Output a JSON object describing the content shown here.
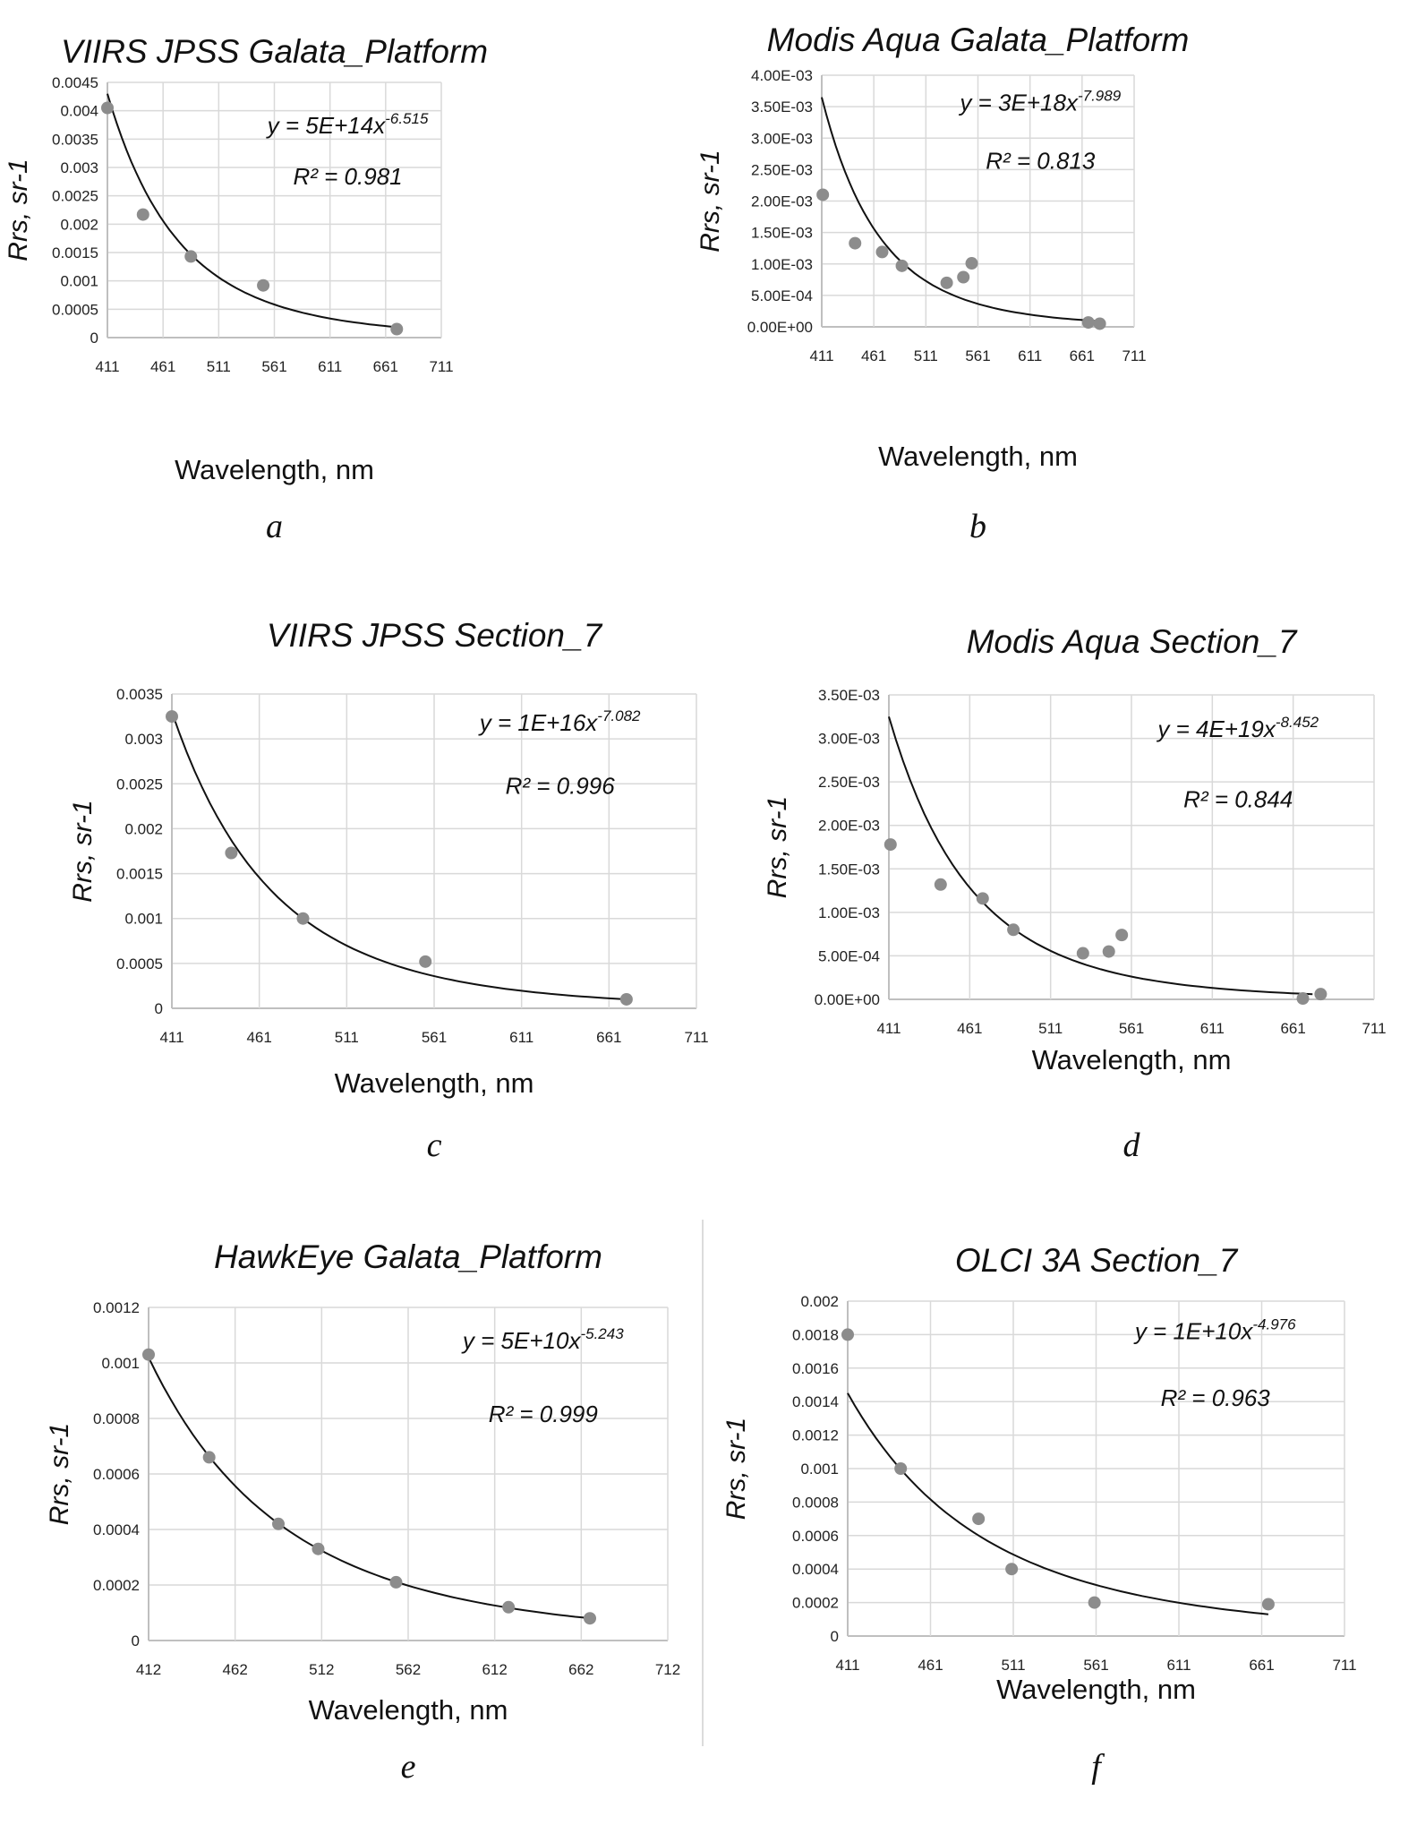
{
  "chart_data": [
    {
      "type": "scatter",
      "panel": "a",
      "title": "VIIRS JPSS Galata_Platform",
      "xlabel": "Wavelength, nm",
      "ylabel": "Rrs, sr-1",
      "xlim": [
        411,
        711
      ],
      "xticks": [
        "411",
        "461",
        "511",
        "561",
        "611",
        "661",
        "711"
      ],
      "ylim": [
        0,
        0.0045
      ],
      "yticks": [
        "0",
        "0.0005",
        "0.001",
        "0.0015",
        "0.002",
        "0.0025",
        "0.003",
        "0.0035",
        "0.004",
        "0.0045"
      ],
      "points": [
        [
          411,
          0.00405
        ],
        [
          443,
          0.00217
        ],
        [
          486,
          0.00143
        ],
        [
          551,
          0.00092
        ],
        [
          671,
          0.00015
        ]
      ],
      "trendline": {
        "type": "power",
        "from": [
          411,
          0.0043
        ],
        "to": [
          668,
          0.00019
        ],
        "equation": "y = 5E+14x",
        "exponent": "-6.515",
        "r2": "R² = 0.981"
      },
      "grid": true
    },
    {
      "type": "scatter",
      "panel": "b",
      "title": "Modis Aqua Galata_Platform",
      "xlabel": "Wavelength, nm",
      "ylabel": "Rrs, sr-1",
      "xlim": [
        411,
        711
      ],
      "xticks": [
        "411",
        "461",
        "511",
        "561",
        "611",
        "661",
        "711"
      ],
      "ylim": [
        0,
        0.004
      ],
      "yticks": [
        "0.00E+00",
        "5.00E-04",
        "1.00E-03",
        "1.50E-03",
        "2.00E-03",
        "2.50E-03",
        "3.00E-03",
        "3.50E-03",
        "4.00E-03"
      ],
      "points": [
        [
          412,
          0.0021
        ],
        [
          443,
          0.00133
        ],
        [
          469,
          0.00119
        ],
        [
          488,
          0.00097
        ],
        [
          531,
          0.0007
        ],
        [
          547,
          0.00079
        ],
        [
          555,
          0.00101
        ],
        [
          667,
          7e-05
        ],
        [
          678,
          5e-05
        ]
      ],
      "trendline": {
        "type": "power",
        "from": [
          411,
          0.00365
        ],
        "to": [
          678,
          9e-05
        ],
        "equation": "y = 3E+18x",
        "exponent": "-7.989",
        "r2": "R² = 0.813"
      },
      "grid": true
    },
    {
      "type": "scatter",
      "panel": "c",
      "title": "VIIRS JPSS Section_7",
      "xlabel": "Wavelength, nm",
      "ylabel": "Rrs, sr-1",
      "xlim": [
        411,
        711
      ],
      "xticks": [
        "411",
        "461",
        "511",
        "561",
        "611",
        "661",
        "711"
      ],
      "ylim": [
        0,
        0.0035
      ],
      "yticks": [
        "0",
        "0.0005",
        "0.001",
        "0.0015",
        "0.002",
        "0.0025",
        "0.003",
        "0.0035"
      ],
      "points": [
        [
          411,
          0.00325
        ],
        [
          445,
          0.00173
        ],
        [
          486,
          0.001
        ],
        [
          556,
          0.00052
        ],
        [
          671,
          0.0001
        ]
      ],
      "trendline": {
        "type": "power",
        "from": [
          411,
          0.0033
        ],
        "to": [
          671,
          0.0001
        ],
        "equation": "y = 1E+16x",
        "exponent": "-7.082",
        "r2": "R² = 0.996"
      },
      "grid": true
    },
    {
      "type": "scatter",
      "panel": "d",
      "title": "Modis Aqua Section_7",
      "xlabel": "Wavelength, nm",
      "ylabel": "Rrs, sr-1",
      "xlim": [
        411,
        711
      ],
      "xticks": [
        "411",
        "461",
        "511",
        "561",
        "611",
        "661",
        "711"
      ],
      "ylim": [
        0,
        0.0035
      ],
      "yticks": [
        "0.00E+00",
        "5.00E-04",
        "1.00E-03",
        "1.50E-03",
        "2.00E-03",
        "2.50E-03",
        "3.00E-03",
        "3.50E-03"
      ],
      "points": [
        [
          412,
          0.00178
        ],
        [
          443,
          0.00132
        ],
        [
          469,
          0.00116
        ],
        [
          488,
          0.0008
        ],
        [
          531,
          0.00053
        ],
        [
          547,
          0.00055
        ],
        [
          555,
          0.00074
        ],
        [
          667,
          1e-05
        ],
        [
          678,
          6e-05
        ]
      ],
      "trendline": {
        "type": "power",
        "from": [
          411,
          0.00325
        ],
        "to": [
          673,
          6e-05
        ],
        "equation": "y = 4E+19x",
        "exponent": "-8.452",
        "r2": "R² = 0.844"
      },
      "grid": true
    },
    {
      "type": "scatter",
      "panel": "e",
      "title": "HawkEye Galata_Platform",
      "xlabel": "Wavelength, nm",
      "ylabel": "Rrs, sr-1",
      "xlim": [
        412,
        712
      ],
      "xticks": [
        "412",
        "462",
        "512",
        "562",
        "612",
        "662",
        "712"
      ],
      "ylim": [
        0,
        0.0012
      ],
      "yticks": [
        "0",
        "0.0002",
        "0.0004",
        "0.0006",
        "0.0008",
        "0.001",
        "0.0012"
      ],
      "points": [
        [
          412,
          0.00103
        ],
        [
          447,
          0.00066
        ],
        [
          487,
          0.00042
        ],
        [
          510,
          0.00033
        ],
        [
          555,
          0.00021
        ],
        [
          620,
          0.00012
        ],
        [
          667,
          8e-05
        ]
      ],
      "trendline": {
        "type": "power",
        "from": [
          412,
          0.00102
        ],
        "to": [
          667,
          8e-05
        ],
        "equation": "y = 5E+10x",
        "exponent": "-5.243",
        "r2": "R² = 0.999"
      },
      "grid": true
    },
    {
      "type": "scatter",
      "panel": "f",
      "title": "OLCI 3A Section_7",
      "xlabel": "Wavelength, nm",
      "ylabel": "Rrs, sr-1",
      "xlim": [
        411,
        711
      ],
      "xticks": [
        "411",
        "461",
        "511",
        "561",
        "611",
        "661",
        "711"
      ],
      "ylim": [
        0,
        0.002
      ],
      "yticks": [
        "0",
        "0.0002",
        "0.0004",
        "0.0006",
        "0.0008",
        "0.001",
        "0.0012",
        "0.0014",
        "0.0016",
        "0.0018",
        "0.002"
      ],
      "points": [
        [
          411,
          0.0018
        ],
        [
          443,
          0.001
        ],
        [
          490,
          0.0007
        ],
        [
          510,
          0.0004
        ],
        [
          560,
          0.0002
        ],
        [
          665,
          0.00019
        ]
      ],
      "trendline": {
        "type": "power",
        "from": [
          411,
          0.00145
        ],
        "to": [
          665,
          0.00013
        ],
        "equation": "y = 1E+10x",
        "exponent": "-4.976",
        "r2": "R² = 0.963"
      },
      "grid": true
    }
  ],
  "colors": {
    "points": "#8c8c8c",
    "trendline": "#111111",
    "grid": "#d9d9d9"
  }
}
